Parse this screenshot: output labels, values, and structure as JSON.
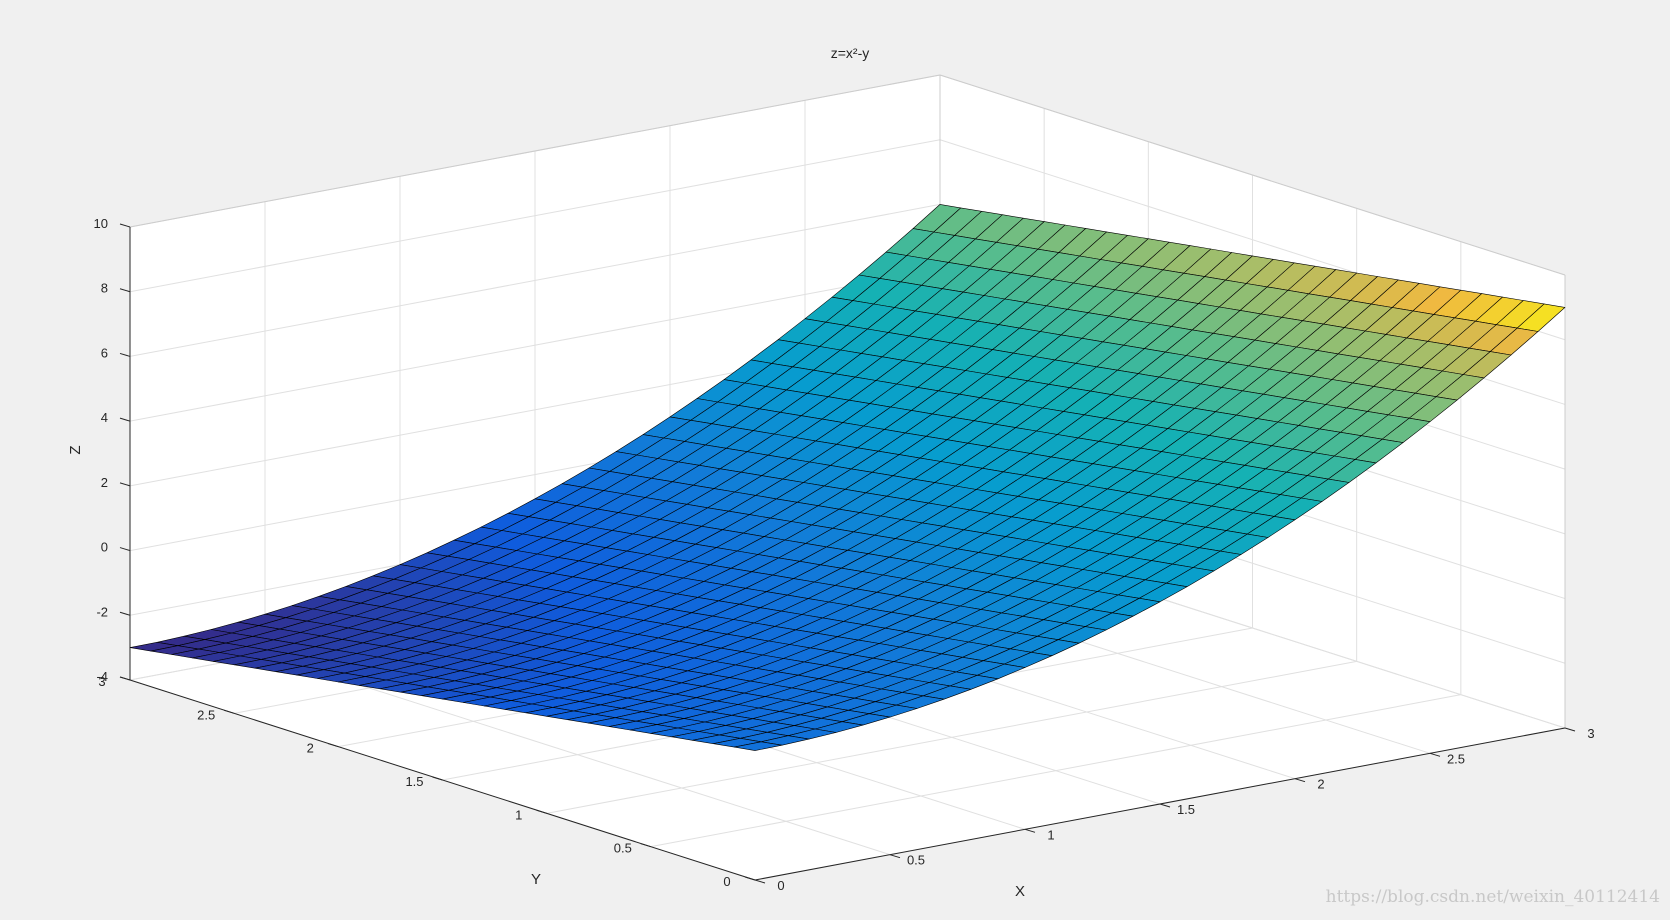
{
  "chart_data": {
    "type": "surface",
    "title": "z=x²-y",
    "xlabel": "X",
    "ylabel": "Y",
    "zlabel": "Z",
    "xlim": [
      0,
      3
    ],
    "ylim": [
      0,
      3
    ],
    "zlim": [
      -4,
      10
    ],
    "x_ticks": [
      "0",
      "0.5",
      "1",
      "1.5",
      "2",
      "2.5",
      "3"
    ],
    "y_ticks": [
      "0",
      "0.5",
      "1",
      "1.5",
      "2",
      "2.5",
      "3"
    ],
    "z_ticks": [
      "-4",
      "-2",
      "0",
      "2",
      "4",
      "6",
      "8",
      "10"
    ],
    "grid": true,
    "colormap": "parula",
    "mesh_steps": 30,
    "mesh_edge_color": "#000000",
    "corner_values": [
      {
        "x": 0,
        "y": 0,
        "z": 0
      },
      {
        "x": 3,
        "y": 0,
        "z": 9
      },
      {
        "x": 0,
        "y": 3,
        "z": -3
      },
      {
        "x": 3,
        "y": 3,
        "z": 6
      }
    ]
  },
  "watermark": "https://blog.csdn.net/weixin_40112414"
}
